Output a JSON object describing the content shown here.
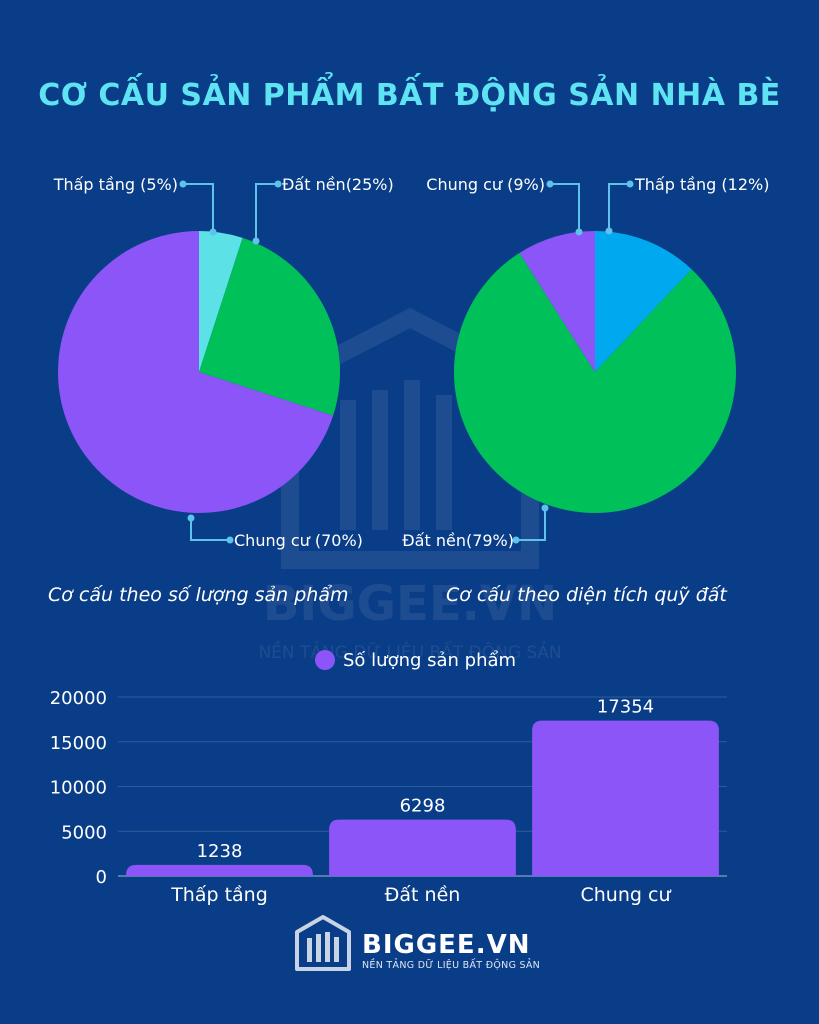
{
  "title": "CƠ CẤU SẢN PHẨM BẤT ĐỘNG SẢN NHÀ BÈ",
  "colors": {
    "background": "#0a3d87",
    "title": "#5de3f2",
    "purple": "#8b55f8",
    "green": "#00c05a",
    "cyan": "#5ce1e6",
    "blue": "#00a8f0",
    "leader": "#5ec2ea"
  },
  "watermark": {
    "brand": "BIGGEE.VN",
    "tagline": "NỀN TẢNG DỮ LIỆU BẤT ĐỘNG SẢN"
  },
  "footer": {
    "brand": "BIGGEE.VN",
    "tagline": "NỀN TẢNG DỮ LIỆU BẤT ĐỘNG SẢN",
    "logo_icon": "building-bars-icon"
  },
  "chart_data": [
    {
      "type": "pie",
      "caption": "Cơ cấu theo số lượng sản phẩm",
      "slices": [
        {
          "label": "Thấp tầng (5%)",
          "category": "Thấp tầng",
          "value": 5,
          "color": "#5ce1e6"
        },
        {
          "label": "Đất nền(25%)",
          "category": "Đất nền",
          "value": 25,
          "color": "#00c05a"
        },
        {
          "label": "Chung cư (70%)",
          "category": "Chung cư",
          "value": 70,
          "color": "#8b55f8"
        }
      ]
    },
    {
      "type": "pie",
      "caption": "Cơ cấu theo diện tích quỹ đất",
      "slices": [
        {
          "label": "Thấp tầng (12%)",
          "category": "Thấp tầng",
          "value": 12,
          "color": "#00a8f0"
        },
        {
          "label": "Đất nền(79%)",
          "category": "Đất nền",
          "value": 79,
          "color": "#00c05a"
        },
        {
          "label": "Chung cư (9%)",
          "category": "Chung cư",
          "value": 9,
          "color": "#8b55f8"
        }
      ]
    },
    {
      "type": "bar",
      "categories": [
        "Thấp tầng",
        "Đất nền",
        "Chung cư"
      ],
      "series": [
        {
          "name": "Số lượng sản phẩm",
          "values": [
            1238,
            6298,
            17354
          ],
          "color": "#8b55f8"
        }
      ],
      "ylim": [
        0,
        20000
      ],
      "yticks": [
        0,
        5000,
        10000,
        15000,
        20000
      ],
      "data_labels": [
        "1238",
        "6298",
        "17354"
      ],
      "legend_position": "top-center",
      "grid": true
    }
  ]
}
